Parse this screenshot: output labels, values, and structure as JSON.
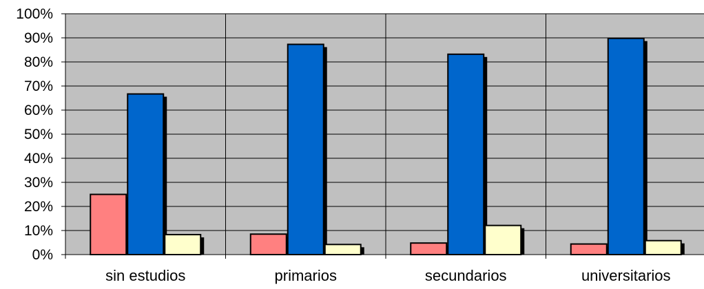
{
  "chart_data": {
    "type": "bar",
    "categories": [
      "sin estudios",
      "primarios",
      "secundarios",
      "universitarios"
    ],
    "series": [
      {
        "color": "#FF8080",
        "values": [
          25,
          8.5,
          4.8,
          4.4
        ]
      },
      {
        "color": "#0066CC",
        "values": [
          66.7,
          87.3,
          83.2,
          89.8
        ]
      },
      {
        "color": "#FFFFCC",
        "values": [
          8.3,
          4.2,
          12.1,
          5.8
        ]
      }
    ],
    "y_ticks": [
      "0%",
      "10%",
      "20%",
      "30%",
      "40%",
      "50%",
      "60%",
      "70%",
      "80%",
      "90%",
      "100%"
    ],
    "ylim": [
      0,
      100
    ],
    "grid": true,
    "plot_background": "#C0C0C0",
    "title": "",
    "xlabel": "",
    "ylabel": ""
  }
}
